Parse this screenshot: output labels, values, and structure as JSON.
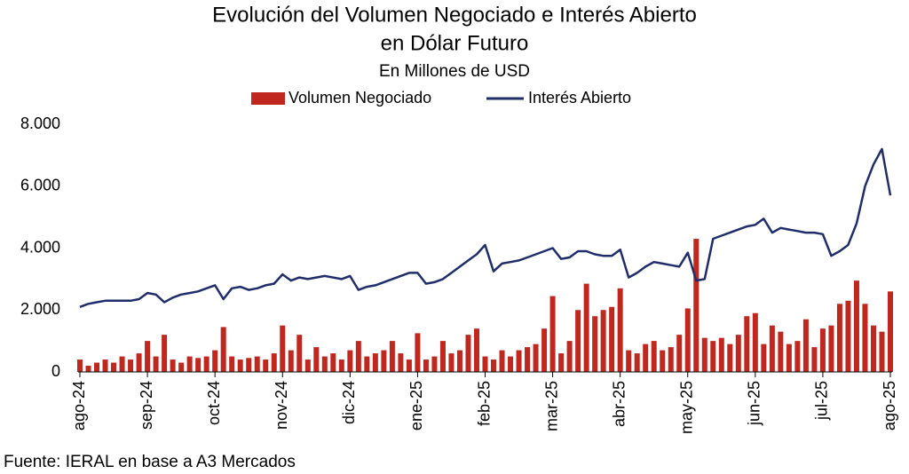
{
  "chart_data": {
    "type": "bar-line",
    "title": [
      "Evolución del Volumen Negociado e Interés Abierto",
      "en Dólar Futuro"
    ],
    "subtitle": "En Millones de USD",
    "source": "Fuente: IERAL en base a A3 Mercados",
    "legend": "top",
    "categories": [
      "ago-24",
      null,
      null,
      null,
      null,
      null,
      null,
      null,
      "sep-24",
      null,
      null,
      null,
      null,
      null,
      null,
      null,
      "oct-24",
      null,
      null,
      null,
      null,
      null,
      null,
      null,
      "nov-24",
      null,
      null,
      null,
      null,
      null,
      null,
      null,
      "dic-24",
      null,
      null,
      null,
      null,
      null,
      null,
      null,
      "ene-25",
      null,
      null,
      null,
      null,
      null,
      null,
      null,
      "feb-25",
      null,
      null,
      null,
      null,
      null,
      null,
      null,
      "mar-25",
      null,
      null,
      null,
      null,
      null,
      null,
      null,
      "abr-25",
      null,
      null,
      null,
      null,
      null,
      null,
      null,
      "may-25",
      null,
      null,
      null,
      null,
      null,
      null,
      null,
      "jun-25",
      null,
      null,
      null,
      null,
      null,
      null,
      null,
      "jul-25",
      null,
      null,
      null,
      null,
      null,
      null,
      null,
      "ago-25"
    ],
    "series": [
      {
        "name": "Volumen Negociado",
        "kind": "bar",
        "color": "#c0271e",
        "values": [
          400,
          200,
          300,
          400,
          300,
          500,
          400,
          600,
          1000,
          500,
          1200,
          400,
          300,
          500,
          450,
          500,
          700,
          1450,
          500,
          400,
          450,
          500,
          400,
          600,
          1500,
          700,
          1200,
          400,
          800,
          500,
          600,
          400,
          700,
          1000,
          500,
          600,
          700,
          1000,
          600,
          400,
          1250,
          400,
          500,
          1000,
          600,
          700,
          1200,
          1400,
          500,
          400,
          700,
          500,
          700,
          800,
          900,
          1400,
          2450,
          600,
          1000,
          2000,
          2850,
          1800,
          2000,
          2100,
          2700,
          700,
          600,
          900,
          1000,
          700,
          800,
          1200,
          2050,
          4300,
          1100,
          1000,
          1100,
          900,
          1200,
          1800,
          1900,
          900,
          1500,
          1300,
          900,
          1000,
          1700,
          800,
          1400,
          1500,
          2200,
          2300,
          2950,
          2200,
          1500,
          1300,
          2600
        ]
      },
      {
        "name": "Interés Abierto",
        "kind": "line",
        "color": "#1f2d6b",
        "values": [
          2100,
          2200,
          2250,
          2300,
          2300,
          2300,
          2300,
          2350,
          2550,
          2500,
          2250,
          2400,
          2500,
          2550,
          2600,
          2700,
          2800,
          2350,
          2700,
          2750,
          2650,
          2700,
          2800,
          2850,
          3150,
          2950,
          3050,
          3000,
          3050,
          3100,
          3050,
          3000,
          3100,
          2650,
          2750,
          2800,
          2900,
          3000,
          3100,
          3200,
          3200,
          2850,
          2900,
          3000,
          3200,
          3400,
          3600,
          3800,
          4100,
          3250,
          3500,
          3550,
          3600,
          3700,
          3800,
          3900,
          4000,
          3650,
          3700,
          3900,
          3900,
          3800,
          3750,
          3750,
          3950,
          3050,
          3200,
          3400,
          3550,
          3500,
          3450,
          3400,
          3850,
          2950,
          3000,
          4300,
          4400,
          4500,
          4600,
          4700,
          4750,
          4950,
          4500,
          4650,
          4600,
          4550,
          4500,
          4500,
          4450,
          3750,
          3900,
          4100,
          4800,
          6000,
          6700,
          7200,
          5700
        ]
      }
    ],
    "ylim": [
      0,
      8000
    ],
    "yticks": [
      0,
      {
        "value": 2000,
        "label": "2.000"
      },
      {
        "value": 4000,
        "label": "4.000"
      },
      {
        "value": 6000,
        "label": "6.000"
      },
      {
        "value": 8000,
        "label": "8.000"
      }
    ],
    "grid": false
  }
}
